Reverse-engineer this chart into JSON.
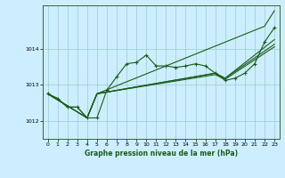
{
  "title": "Graphe pression niveau de la mer (hPa)",
  "background_color": "#cceeff",
  "grid_color": "#99cccc",
  "line_color": "#1a5c1a",
  "xlim": [
    -0.5,
    23.5
  ],
  "ylim": [
    1011.5,
    1015.2
  ],
  "yticks": [
    1012,
    1013,
    1014
  ],
  "xticks": [
    0,
    1,
    2,
    3,
    4,
    5,
    6,
    7,
    8,
    9,
    10,
    11,
    12,
    13,
    14,
    15,
    16,
    17,
    18,
    19,
    20,
    21,
    22,
    23
  ],
  "series1_x": [
    0,
    1,
    2,
    3,
    4,
    5,
    6,
    7,
    8,
    9,
    10,
    11,
    12,
    13,
    14,
    15,
    16,
    17,
    18,
    19,
    20,
    21,
    22,
    23
  ],
  "series1_y": [
    1012.75,
    1012.62,
    1012.38,
    1012.38,
    1012.08,
    1012.08,
    1012.85,
    1013.22,
    1013.58,
    1013.62,
    1013.82,
    1013.52,
    1013.52,
    1013.48,
    1013.52,
    1013.58,
    1013.52,
    1013.32,
    1013.12,
    1013.18,
    1013.32,
    1013.58,
    1014.18,
    1014.58
  ],
  "series2_x": [
    0,
    1,
    2,
    3,
    4,
    5,
    22,
    23
  ],
  "series2_y": [
    1012.75,
    1012.62,
    1012.38,
    1012.38,
    1012.08,
    1012.75,
    1014.62,
    1015.05
  ],
  "series3_x": [
    0,
    4,
    5,
    17,
    18,
    23
  ],
  "series3_y": [
    1012.75,
    1012.08,
    1012.75,
    1013.32,
    1013.18,
    1014.25
  ],
  "series4_x": [
    0,
    4,
    5,
    17,
    18,
    23
  ],
  "series4_y": [
    1012.75,
    1012.08,
    1012.75,
    1013.32,
    1013.18,
    1014.12
  ],
  "series5_x": [
    0,
    4,
    5,
    17,
    18,
    23
  ],
  "series5_y": [
    1012.75,
    1012.08,
    1012.75,
    1013.28,
    1013.15,
    1014.05
  ]
}
